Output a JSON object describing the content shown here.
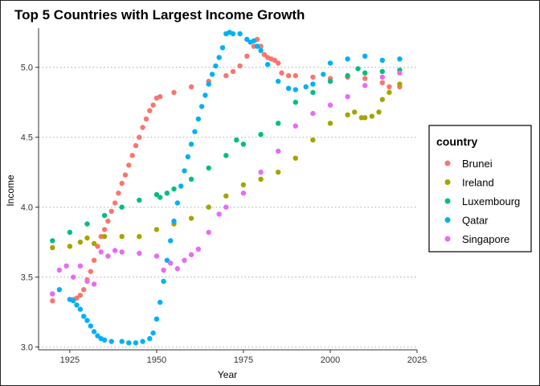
{
  "chart_data": {
    "type": "scatter",
    "title": "Top 5 Countries with Largest Income Growth",
    "xlabel": "Year",
    "ylabel": "Income",
    "xlim": [
      1916,
      2025
    ],
    "ylim": [
      2.98,
      5.28
    ],
    "xticks": [
      1925,
      1950,
      1975,
      2000,
      2025
    ],
    "yticks": [
      3.0,
      3.5,
      4.0,
      4.5,
      5.0
    ],
    "xtick_labels": [
      "1925",
      "1950",
      "1975",
      "2000",
      "2025"
    ],
    "ytick_labels": [
      "3.0",
      "3.5",
      "4.0",
      "4.5",
      "5.0"
    ],
    "grid": "horizontal dotted",
    "legend": {
      "title": "country",
      "position": "right"
    },
    "series": [
      {
        "name": "Brunei",
        "color": "#F8766D",
        "x": [
          1920,
          1925,
          1926,
          1927,
          1928,
          1929,
          1930,
          1931,
          1932,
          1933,
          1934,
          1935,
          1936,
          1937,
          1938,
          1939,
          1940,
          1941,
          1942,
          1943,
          1944,
          1945,
          1946,
          1947,
          1948,
          1949,
          1950,
          1951,
          1955,
          1960,
          1965,
          1970,
          1972,
          1974,
          1976,
          1978,
          1979,
          1980,
          1981,
          1982,
          1983,
          1984,
          1985,
          1986,
          1988,
          1990,
          1995,
          2000,
          2005,
          2010,
          2015,
          2017,
          2020
        ],
        "y": [
          3.33,
          3.34,
          3.34,
          3.35,
          3.37,
          3.41,
          3.48,
          3.54,
          3.62,
          3.72,
          3.79,
          3.84,
          3.9,
          3.97,
          4.03,
          4.1,
          4.17,
          4.23,
          4.3,
          4.37,
          4.44,
          4.5,
          4.57,
          4.63,
          4.69,
          4.73,
          4.78,
          4.79,
          4.82,
          4.86,
          4.9,
          4.94,
          4.97,
          5.01,
          5.08,
          5.15,
          5.2,
          5.15,
          5.09,
          5.07,
          5.06,
          5.05,
          5.03,
          4.96,
          4.94,
          4.94,
          4.93,
          4.92,
          4.93,
          4.92,
          4.89,
          4.86,
          4.86
        ]
      },
      {
        "name": "Ireland",
        "color": "#A3A500",
        "x": [
          1920,
          1925,
          1928,
          1930,
          1932,
          1935,
          1940,
          1945,
          1950,
          1955,
          1960,
          1965,
          1970,
          1975,
          1980,
          1985,
          1990,
          1995,
          2000,
          2005,
          2007,
          2009,
          2010,
          2012,
          2014,
          2015,
          2017,
          2020
        ],
        "y": [
          3.71,
          3.72,
          3.75,
          3.78,
          3.74,
          3.79,
          3.79,
          3.79,
          3.84,
          3.88,
          3.92,
          4.0,
          4.08,
          4.16,
          4.2,
          4.25,
          4.35,
          4.48,
          4.6,
          4.66,
          4.68,
          4.64,
          4.64,
          4.65,
          4.68,
          4.77,
          4.82,
          4.88
        ]
      },
      {
        "name": "Luxembourg",
        "color": "#00BF7D",
        "x": [
          1920,
          1925,
          1930,
          1935,
          1940,
          1945,
          1950,
          1951,
          1953,
          1955,
          1960,
          1965,
          1970,
          1973,
          1975,
          1980,
          1985,
          1990,
          1995,
          2000,
          2005,
          2008,
          2010,
          2015,
          2020
        ],
        "y": [
          3.76,
          3.82,
          3.88,
          3.94,
          4.0,
          4.05,
          4.09,
          4.07,
          4.1,
          4.13,
          4.2,
          4.28,
          4.37,
          4.48,
          4.45,
          4.52,
          4.6,
          4.75,
          4.82,
          4.9,
          4.94,
          4.99,
          4.96,
          4.97,
          4.98
        ]
      },
      {
        "name": "Qatar",
        "color": "#00B0F6",
        "x": [
          1920,
          1922,
          1925,
          1926,
          1927,
          1928,
          1929,
          1930,
          1931,
          1932,
          1933,
          1934,
          1935,
          1937,
          1940,
          1942,
          1944,
          1946,
          1948,
          1949,
          1950,
          1951,
          1952,
          1953,
          1954,
          1955,
          1956,
          1957,
          1958,
          1959,
          1960,
          1961,
          1962,
          1963,
          1964,
          1965,
          1966,
          1967,
          1968,
          1969,
          1970,
          1971,
          1972,
          1974,
          1976,
          1977,
          1978,
          1979,
          1980,
          1982,
          1985,
          1988,
          1990,
          1993,
          1995,
          1998,
          2000,
          2005,
          2010,
          2015,
          2020
        ],
        "y": [
          3.38,
          3.41,
          3.34,
          3.33,
          3.3,
          3.27,
          3.22,
          3.19,
          3.15,
          3.11,
          3.08,
          3.06,
          3.05,
          3.04,
          3.04,
          3.03,
          3.03,
          3.04,
          3.06,
          3.1,
          3.2,
          3.32,
          3.47,
          3.62,
          3.76,
          3.9,
          4.03,
          4.15,
          4.26,
          4.36,
          4.45,
          4.54,
          4.63,
          4.72,
          4.8,
          4.88,
          4.95,
          5.01,
          5.07,
          5.14,
          5.24,
          5.25,
          5.24,
          5.24,
          5.2,
          5.18,
          5.19,
          5.15,
          5.12,
          5.02,
          4.9,
          4.85,
          4.84,
          4.86,
          4.88,
          4.95,
          5.03,
          5.06,
          5.08,
          5.05,
          5.06
        ]
      },
      {
        "name": "Singapore",
        "color": "#E76BF3",
        "x": [
          1920,
          1922,
          1924,
          1926,
          1928,
          1930,
          1932,
          1934,
          1936,
          1938,
          1940,
          1945,
          1950,
          1952,
          1954,
          1956,
          1958,
          1960,
          1962,
          1965,
          1968,
          1970,
          1975,
          1980,
          1985,
          1990,
          1995,
          2000,
          2005,
          2010,
          2015,
          2020
        ],
        "y": [
          3.38,
          3.55,
          3.58,
          3.5,
          3.58,
          3.47,
          3.45,
          3.68,
          3.65,
          3.69,
          3.68,
          3.67,
          3.65,
          3.55,
          3.6,
          3.56,
          3.62,
          3.66,
          3.7,
          3.82,
          3.95,
          4.0,
          4.1,
          4.25,
          4.4,
          4.58,
          4.67,
          4.73,
          4.79,
          4.87,
          4.93,
          4.96
        ]
      }
    ]
  }
}
